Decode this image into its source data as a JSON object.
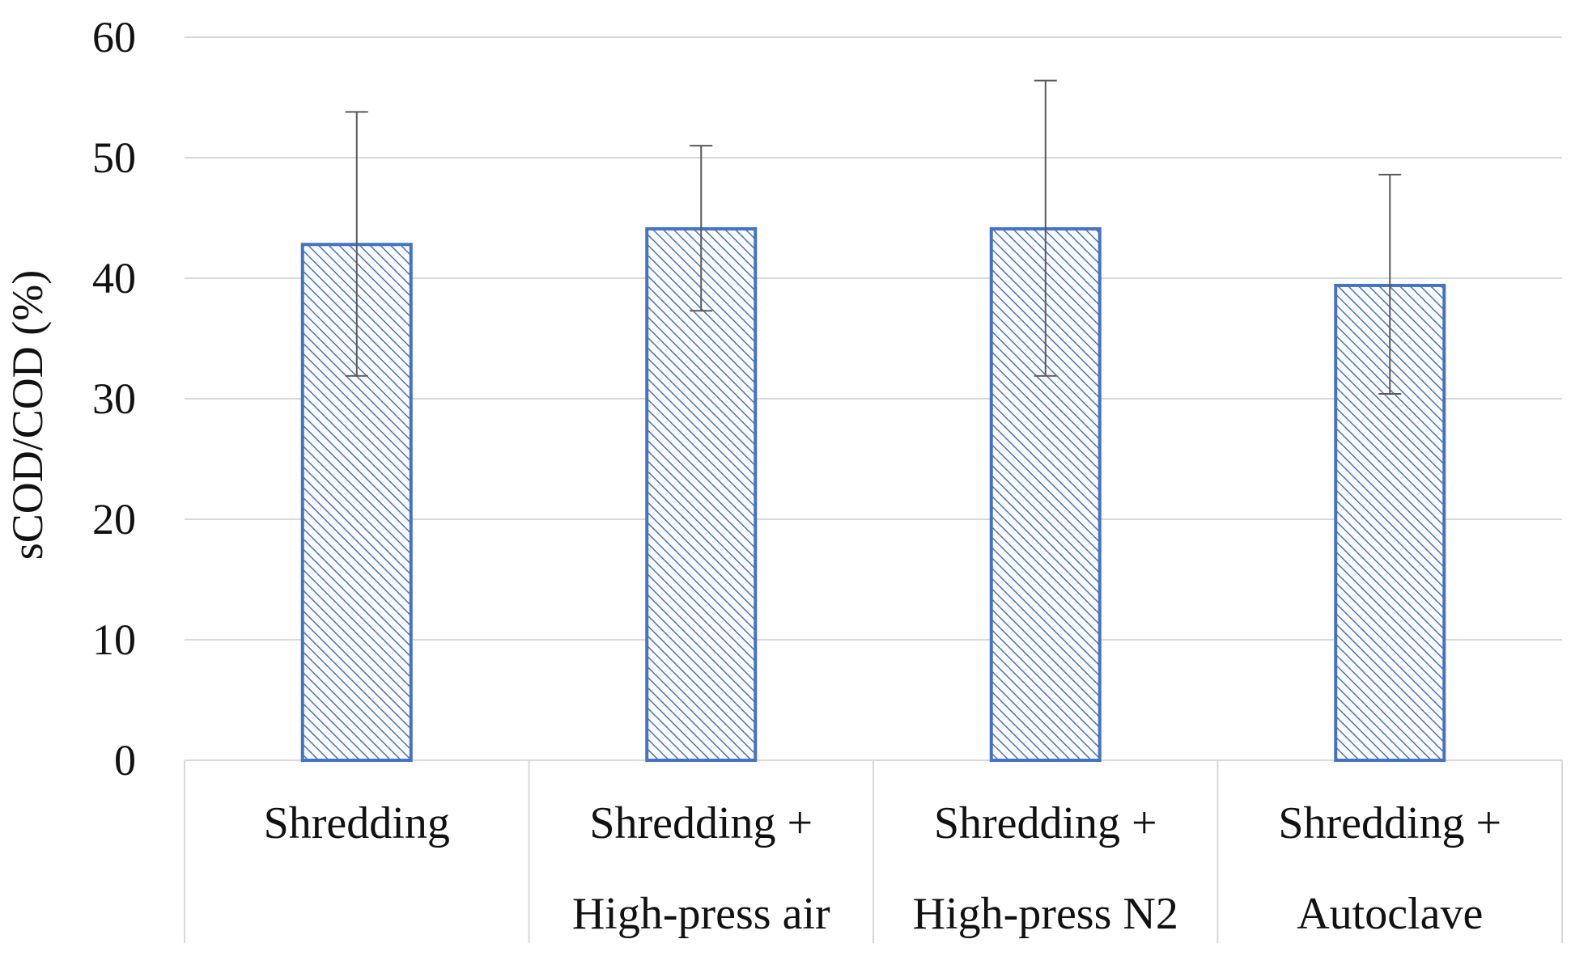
{
  "chart_data": {
    "type": "bar",
    "title": "",
    "xlabel": "",
    "ylabel": "sCOD/COD (%)",
    "ylim": [
      0,
      60
    ],
    "yticks": [
      0,
      10,
      20,
      30,
      40,
      50,
      60
    ],
    "grid": true,
    "categories": [
      [
        "Shredding"
      ],
      [
        "Shredding +",
        "High-press air"
      ],
      [
        "Shredding +",
        "High-press N2"
      ],
      [
        "Shredding +",
        "Autoclave"
      ]
    ],
    "values": [
      42.8,
      44.1,
      44.1,
      39.4
    ],
    "error_upper": [
      53.8,
      51.0,
      56.4,
      48.6
    ],
    "error_lower": [
      31.9,
      37.3,
      31.9,
      30.4
    ],
    "bar_color": "#4472C4",
    "hatch_color": "#4472C4",
    "grid_color": "#d9d9d9",
    "error_color": "#595959"
  }
}
